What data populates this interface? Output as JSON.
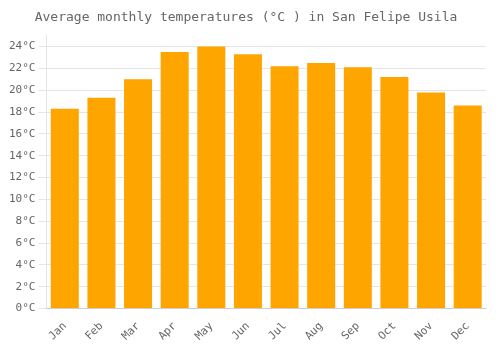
{
  "chart_data": {
    "type": "bar",
    "title": "Average monthly temperatures (°C ) in San Felipe Usila",
    "categories": [
      "Jan",
      "Feb",
      "Mar",
      "Apr",
      "May",
      "Jun",
      "Jul",
      "Aug",
      "Sep",
      "Oct",
      "Nov",
      "Dec"
    ],
    "values": [
      18.3,
      19.3,
      21.0,
      23.5,
      24.0,
      23.3,
      22.2,
      22.5,
      22.1,
      21.2,
      19.8,
      18.6
    ],
    "color": "#FFA500",
    "ylim": [
      0,
      25
    ],
    "yticks": [
      {
        "value": 0,
        "label": "0°C"
      },
      {
        "value": 2,
        "label": "2°C"
      },
      {
        "value": 4,
        "label": "4°C"
      },
      {
        "value": 6,
        "label": "6°C"
      },
      {
        "value": 8,
        "label": "8°C"
      },
      {
        "value": 10,
        "label": "10°C"
      },
      {
        "value": 12,
        "label": "12°C"
      },
      {
        "value": 14,
        "label": "14°C"
      },
      {
        "value": 16,
        "label": "16°C"
      },
      {
        "value": 18,
        "label": "18°C"
      },
      {
        "value": 20,
        "label": "20°C"
      },
      {
        "value": 22,
        "label": "22°C"
      },
      {
        "value": 24,
        "label": "24°C"
      }
    ],
    "grid": true
  }
}
